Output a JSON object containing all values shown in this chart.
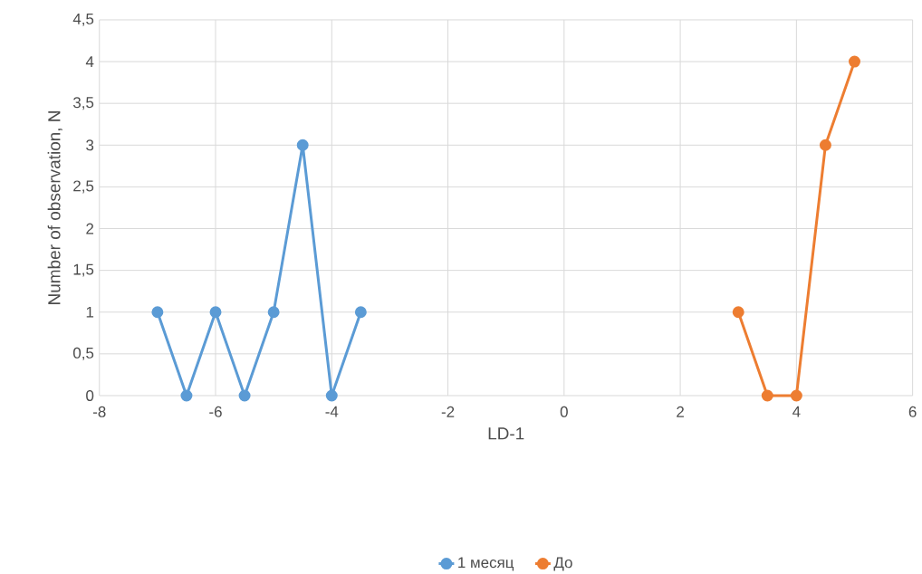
{
  "chart_data": {
    "type": "line",
    "xlabel": "LD-1",
    "ylabel": "Number of observation, N",
    "series": [
      {
        "name": "1 месяц",
        "color": "#5b9bd5",
        "x": [
          -7,
          -6.5,
          -6,
          -5.5,
          -5,
          -4.5,
          -4,
          -3.5
        ],
        "values": [
          1,
          0,
          1,
          0,
          1,
          3,
          0,
          1
        ]
      },
      {
        "name": "До",
        "color": "#ed7d31",
        "x": [
          3,
          3.5,
          4,
          4.5,
          5
        ],
        "values": [
          1,
          0,
          0,
          3,
          4
        ]
      }
    ],
    "xlim": [
      -8,
      6
    ],
    "xticks": [
      -8,
      -6,
      -4,
      -2,
      0,
      2,
      4,
      6
    ],
    "ylim": [
      0,
      4.5
    ],
    "yticks": [
      0,
      {
        "value": 0.5,
        "label": "0,5"
      },
      1,
      {
        "value": 1.5,
        "label": "1,5"
      },
      2,
      {
        "value": 2.5,
        "label": "2,5"
      },
      3,
      {
        "value": 3.5,
        "label": "3,5"
      },
      4,
      {
        "value": 4.5,
        "label": "4,5"
      }
    ],
    "grid": true,
    "legend": "bottom",
    "marker": "circle",
    "line_style": "solid"
  }
}
